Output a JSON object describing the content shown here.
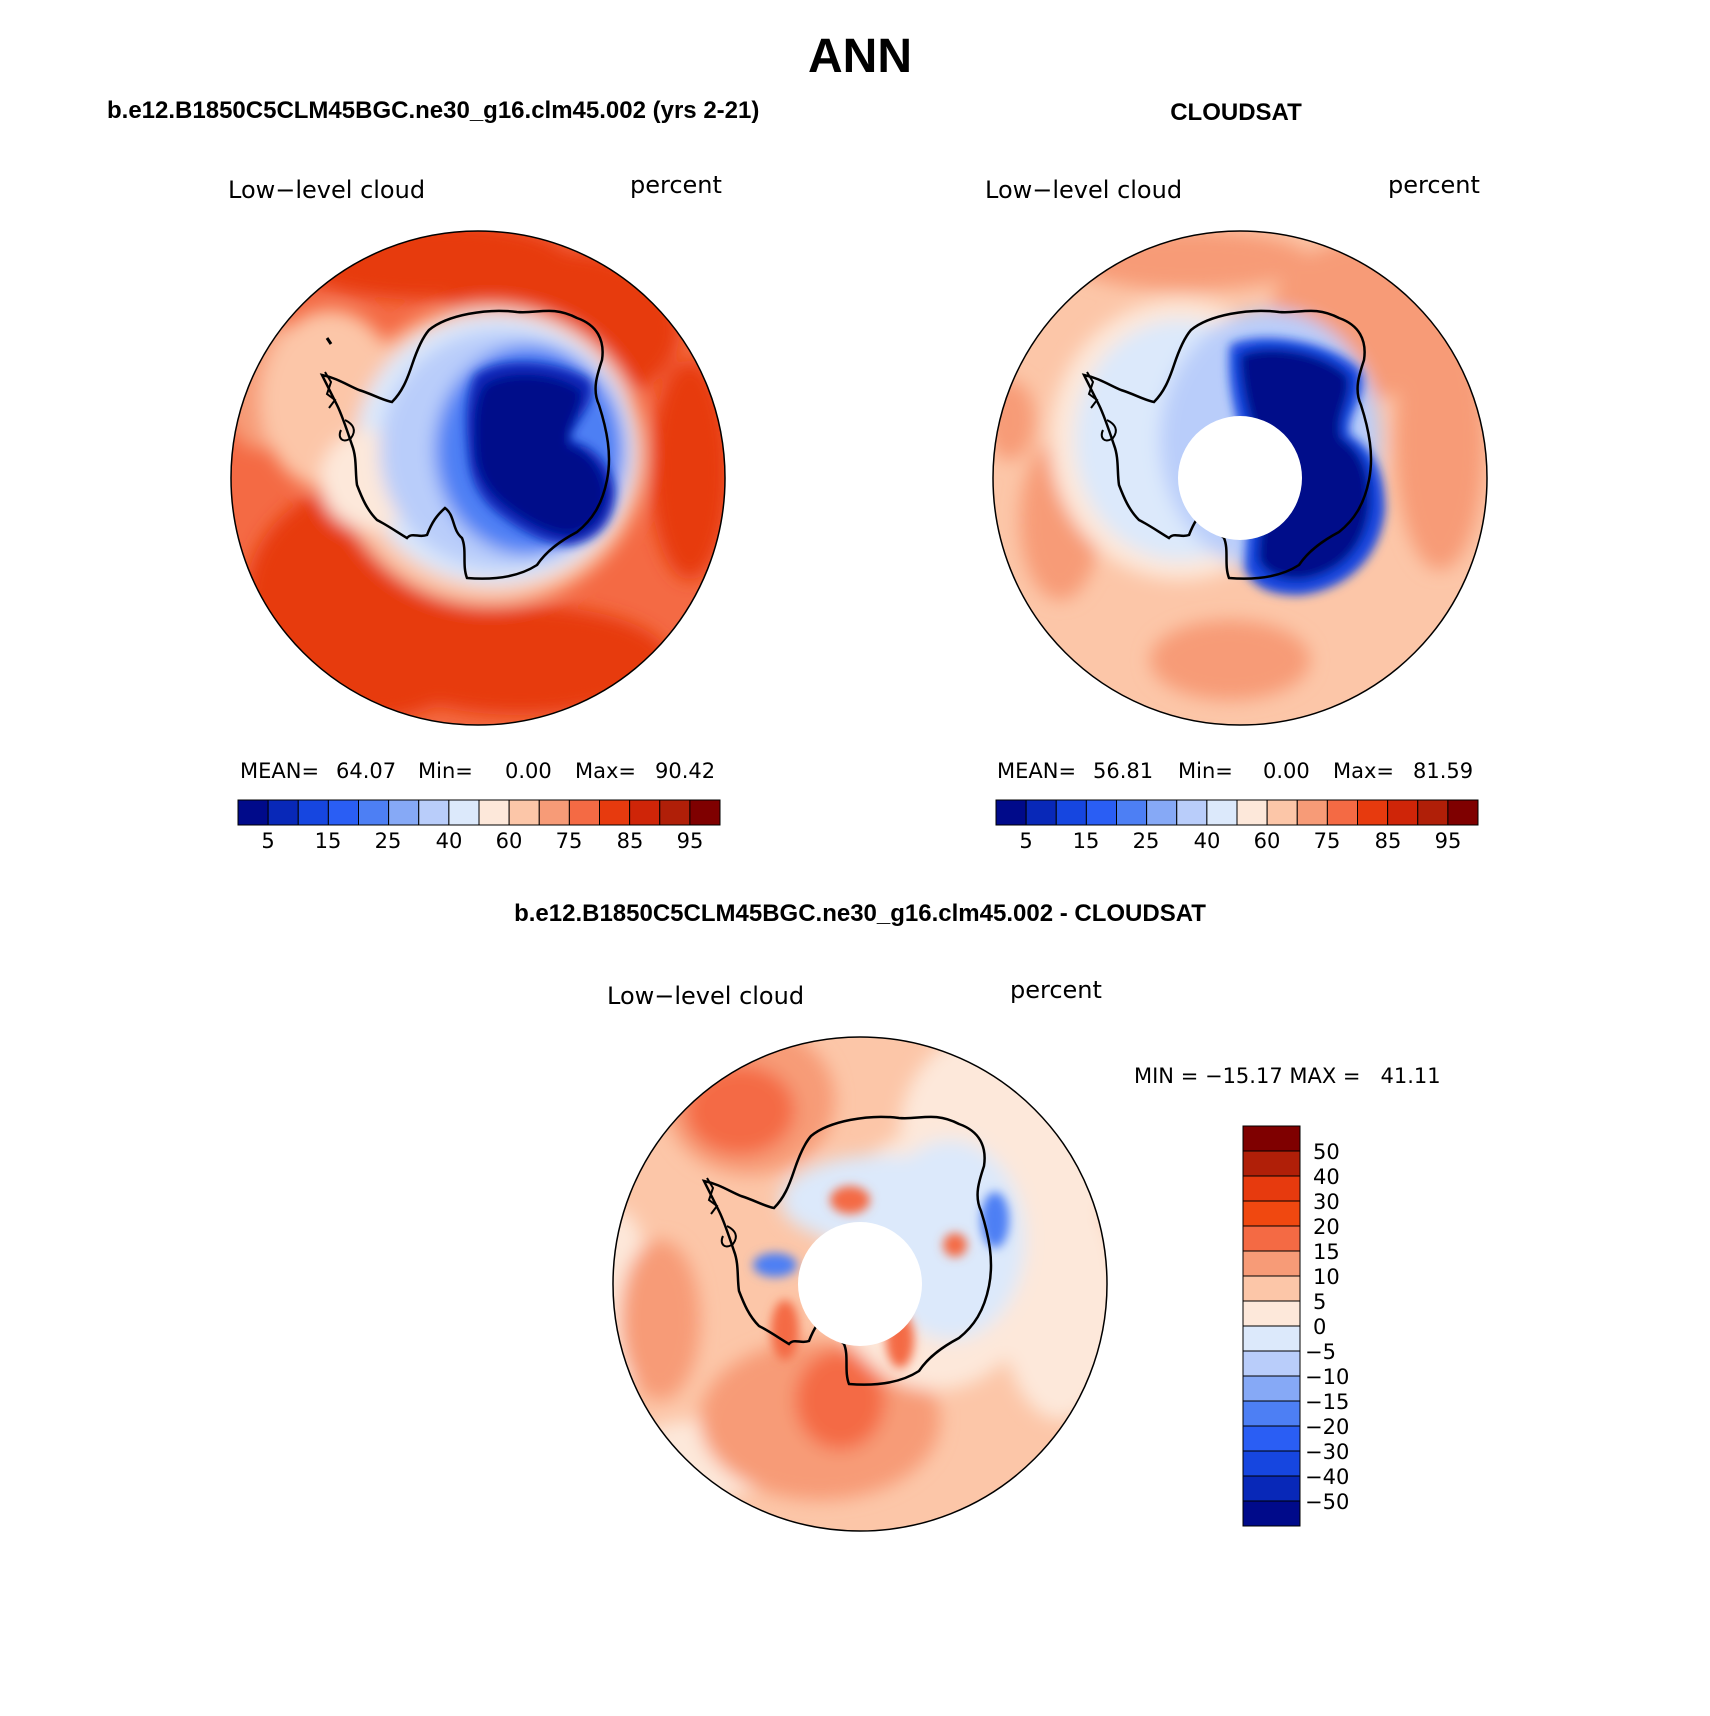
{
  "figure": {
    "title": "ANN",
    "colors": {
      "abs_scale": [
        "#000a8a",
        "#0828b8",
        "#1646e0",
        "#2a5ef4",
        "#4d7ff4",
        "#86a9f6",
        "#b9cdfa",
        "#dce9fb",
        "#fde8da",
        "#fcc6a8",
        "#f79b77",
        "#f46a44",
        "#e73a0e",
        "#cf2508",
        "#b01f08",
        "#7f0000"
      ],
      "diff_scale": [
        "#7f0000",
        "#b01f08",
        "#e73a0e",
        "#f04810",
        "#f46a44",
        "#f79b77",
        "#fcc6a8",
        "#fde8da",
        "#dce9fb",
        "#b9cdfa",
        "#86a9f6",
        "#4d7ff4",
        "#2a5ef4",
        "#1646e0",
        "#0828b8",
        "#000a8a"
      ]
    }
  },
  "panels": [
    {
      "id": "model",
      "header": "b.e12.B1850C5CLM45BGC.ne30_g16.clm45.002 (yrs 2-21)",
      "left_label": "Low−level cloud",
      "right_label": "percent",
      "stats": {
        "mean_label": "MEAN=",
        "mean": "64.07",
        "min_label": "Min=",
        "min": "0.00",
        "max_label": "Max=",
        "max": "90.42"
      },
      "colorbar_ticks": [
        "5",
        "15",
        "25",
        "40",
        "60",
        "75",
        "85",
        "95"
      ]
    },
    {
      "id": "obs",
      "header": "CLOUDSAT",
      "left_label": "Low−level cloud",
      "right_label": "percent",
      "stats": {
        "mean_label": "MEAN=",
        "mean": "56.81",
        "min_label": "Min=",
        "min": "0.00",
        "max_label": "Max=",
        "max": "81.59"
      },
      "colorbar_ticks": [
        "5",
        "15",
        "25",
        "40",
        "60",
        "75",
        "85",
        "95"
      ]
    },
    {
      "id": "diff",
      "header": "b.e12.B1850C5CLM45BGC.ne30_g16.clm45.002 - CLOUDSAT",
      "left_label": "Low−level cloud",
      "right_label": "percent",
      "stats_line": "MIN = −15.17 MAX =   41.11",
      "colorbar_ticks": [
        "50",
        "40",
        "30",
        "20",
        "15",
        "10",
        "5",
        "0",
        "−5",
        "−10",
        "−15",
        "−20",
        "−30",
        "−40",
        "−50"
      ]
    }
  ]
}
